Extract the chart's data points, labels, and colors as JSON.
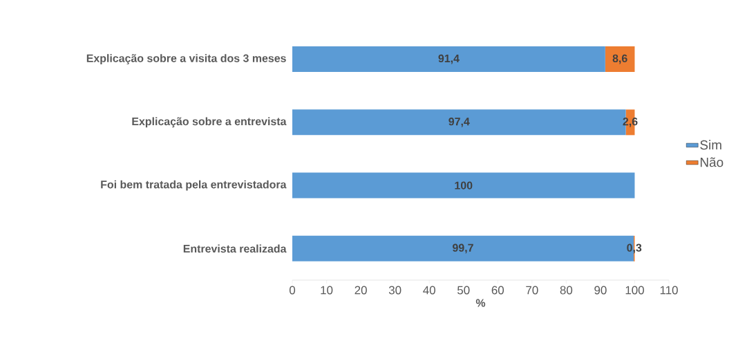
{
  "chart_data": {
    "type": "bar",
    "orientation": "horizontal",
    "stacked": true,
    "categories": [
      "Explicação sobre a visita dos 3 meses",
      "Explicação sobre a entrevista",
      "Foi bem tratada pela entrevistadora",
      "Entrevista realizada"
    ],
    "series": [
      {
        "name": "Sim",
        "color": "#5b9bd5",
        "values": [
          91.4,
          97.4,
          100,
          99.7
        ],
        "value_labels": [
          "91,4",
          "97,4",
          "100",
          "99,7"
        ]
      },
      {
        "name": "Não",
        "color": "#ed7d31",
        "values": [
          8.6,
          2.6,
          0,
          0.3
        ],
        "value_labels": [
          "8,6",
          "2,6",
          null,
          "0,3"
        ]
      }
    ],
    "xlabel": "%",
    "xlim": [
      0,
      110
    ],
    "xticks": [
      0,
      10,
      20,
      30,
      40,
      50,
      60,
      70,
      80,
      90,
      100,
      110
    ],
    "legend": "right"
  }
}
